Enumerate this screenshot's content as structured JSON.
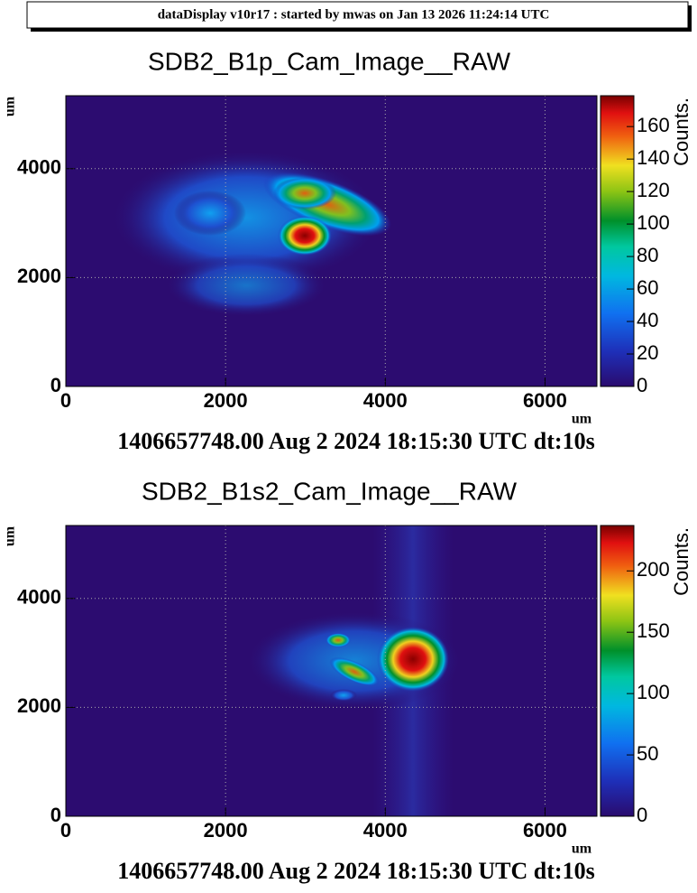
{
  "header": "dataDisplay v10r17 : started by mwas on Jan 13 2026 11:24:14 UTC",
  "chart_data": [
    {
      "type": "heatmap",
      "title": "SDB2_B1p_Cam_Image__RAW",
      "subtitle": "1406657748.00 Aug 2 2024 18:15:30 UTC dt:10s",
      "x_label": "um",
      "y_label": "um",
      "z_label": "Counts.",
      "xlim": [
        0,
        6650
      ],
      "xticks": [
        0,
        2000,
        4000,
        6000
      ],
      "ylim": [
        0,
        5340
      ],
      "yticks": [
        0,
        2000,
        4000
      ],
      "zlim": [
        0,
        179
      ],
      "zticks": [
        0,
        20,
        40,
        60,
        80,
        100,
        120,
        140,
        160
      ],
      "grid": true
    },
    {
      "type": "heatmap",
      "title": "SDB2_B1s2_Cam_Image__RAW",
      "subtitle": "1406657748.00 Aug 2 2024 18:15:30 UTC dt:10s",
      "x_label": "um",
      "y_label": "um",
      "z_label": "Counts.",
      "xlim": [
        0,
        6650
      ],
      "xticks": [
        0,
        2000,
        4000,
        6000
      ],
      "ylim": [
        0,
        5340
      ],
      "yticks": [
        0,
        2000,
        4000
      ],
      "zlim": [
        0,
        237
      ],
      "zticks": [
        0,
        50,
        100,
        150,
        200
      ],
      "grid": true
    }
  ]
}
